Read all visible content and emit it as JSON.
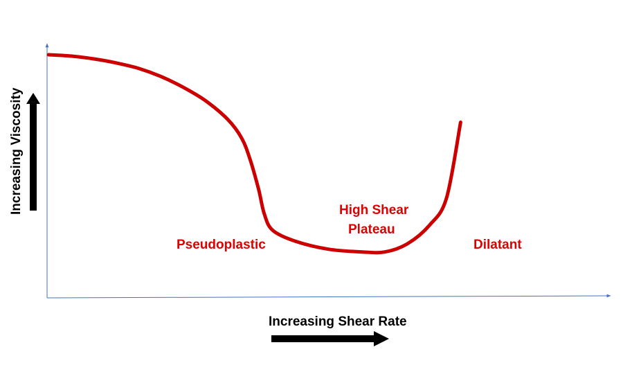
{
  "chart_data": {
    "type": "line",
    "title": "",
    "xlabel": "Increasing Shear Rate",
    "ylabel": "Increasing Viscosity",
    "x_ticks": false,
    "y_ticks": false,
    "grid": false,
    "series": [
      {
        "points": [
          [
            0,
            0.9
          ],
          [
            4,
            0.895
          ],
          [
            8,
            0.885
          ],
          [
            12,
            0.87
          ],
          [
            16,
            0.85
          ],
          [
            20,
            0.82
          ],
          [
            24,
            0.78
          ],
          [
            28,
            0.73
          ],
          [
            32,
            0.66
          ],
          [
            34.5,
            0.59
          ],
          [
            36,
            0.51
          ],
          [
            37.5,
            0.4
          ],
          [
            38.5,
            0.31
          ],
          [
            40,
            0.25
          ],
          [
            44,
            0.21
          ],
          [
            50,
            0.18
          ],
          [
            56,
            0.17
          ],
          [
            60,
            0.17
          ],
          [
            64,
            0.2
          ],
          [
            68,
            0.27
          ],
          [
            71,
            0.37
          ],
          [
            73.5,
            0.65
          ]
        ],
        "color": "#CC0000"
      }
    ],
    "annotations": [
      {
        "id": "pseudoplastic",
        "text": "Pseudoplastic"
      },
      {
        "id": "high_shear_1",
        "text": "High Shear"
      },
      {
        "id": "high_shear_2",
        "text": "Plateau"
      },
      {
        "id": "dilatant",
        "text": "Dilatant"
      }
    ],
    "axis_colors": {
      "axis": "#4472C4",
      "curve": "#CC0000",
      "labels": "#E00000",
      "arrows": "#000000"
    }
  }
}
